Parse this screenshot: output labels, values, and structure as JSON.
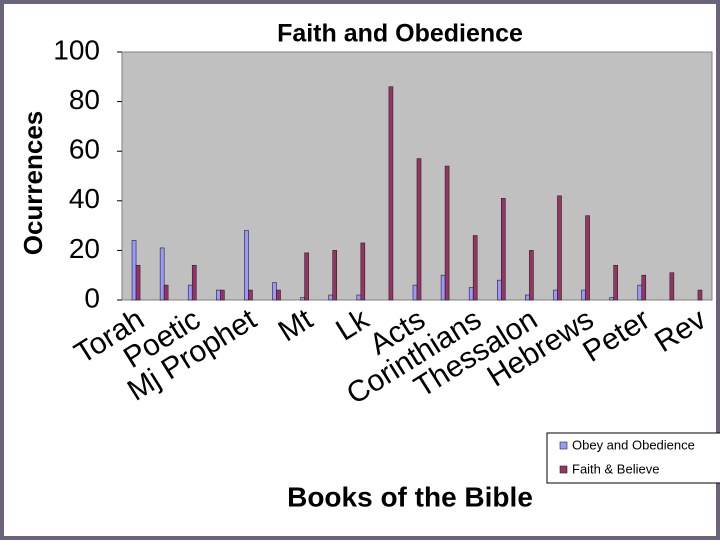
{
  "chart_data": {
    "type": "bar",
    "title": "Faith and Obedience",
    "x_label": "Books of the Bible",
    "y_label": "Ocurrences",
    "categories": [
      "Torah",
      null,
      "Poetic",
      null,
      "Mj Prophet",
      null,
      "Mt",
      null,
      "Lk",
      null,
      "Acts",
      null,
      "Corinthians",
      null,
      "Thessalon",
      null,
      "Hebrews",
      null,
      "Peter",
      null,
      "Rev"
    ],
    "series": [
      {
        "name": "Obey and Obedience",
        "color": "#9999ff",
        "values": [
          24,
          21,
          6,
          4,
          28,
          7,
          1,
          2,
          2,
          0,
          6,
          10,
          5,
          8,
          2,
          4,
          4,
          1,
          6,
          0,
          0
        ]
      },
      {
        "name": "Faith & Believe",
        "color": "#993366",
        "values": [
          14,
          6,
          14,
          4,
          4,
          4,
          19,
          20,
          23,
          86,
          57,
          54,
          26,
          41,
          20,
          42,
          34,
          14,
          10,
          11,
          4
        ]
      }
    ],
    "ylim": [
      0,
      100
    ],
    "yticks": [
      0,
      20,
      40,
      60,
      80,
      100
    ],
    "grid": false,
    "legend": "bottom-right"
  }
}
